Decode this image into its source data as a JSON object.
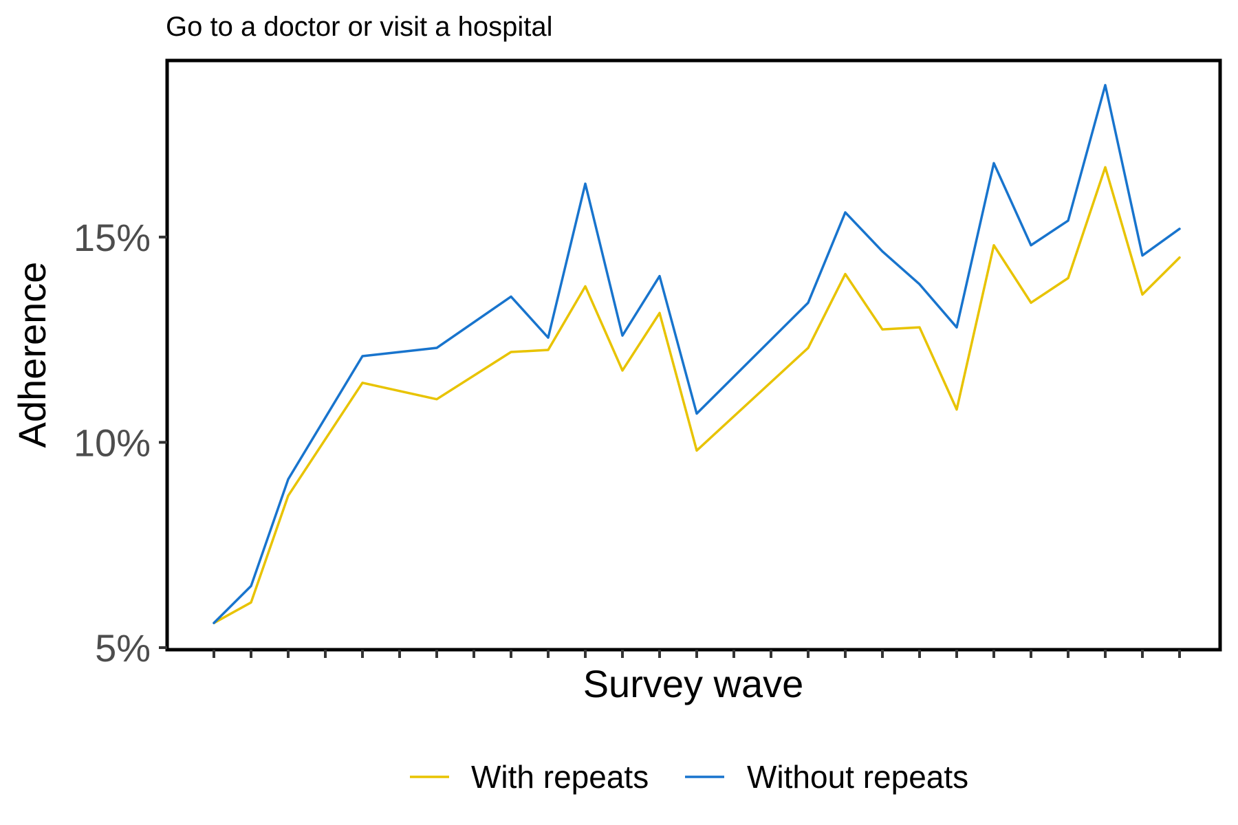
{
  "chart_data": {
    "type": "line",
    "title": "Go to a doctor or visit a hospital",
    "xlabel": "Survey wave",
    "ylabel": "Adherence",
    "x": [
      1,
      2,
      3,
      4,
      5,
      6,
      7,
      8,
      9,
      10,
      11,
      12,
      13,
      14,
      15,
      16,
      17,
      18,
      19,
      20,
      21,
      22,
      23,
      24,
      25,
      26,
      27
    ],
    "x_tick_labels_shown": false,
    "ylim": [
      5,
      19.3
    ],
    "y_ticks": [
      5,
      10,
      15
    ],
    "y_tick_labels": [
      "5%",
      "10%",
      "15%"
    ],
    "grid": false,
    "legend_position": "bottom",
    "series": [
      {
        "name": "With repeats",
        "color": "#E8C300",
        "values": [
          5.6,
          6.1,
          8.7,
          null,
          11.45,
          null,
          11.05,
          null,
          12.2,
          12.25,
          13.8,
          11.75,
          13.15,
          9.8,
          null,
          null,
          12.3,
          14.1,
          12.75,
          12.8,
          10.8,
          14.8,
          13.4,
          14.0,
          16.7,
          13.6,
          14.5
        ]
      },
      {
        "name": "Without repeats",
        "color": "#1874CD",
        "values": [
          5.6,
          6.5,
          9.1,
          null,
          12.1,
          null,
          12.3,
          null,
          13.55,
          12.55,
          16.3,
          12.6,
          14.05,
          10.7,
          null,
          null,
          13.4,
          15.6,
          14.65,
          13.85,
          12.8,
          16.8,
          14.8,
          15.4,
          18.7,
          14.55,
          15.2
        ]
      }
    ]
  }
}
